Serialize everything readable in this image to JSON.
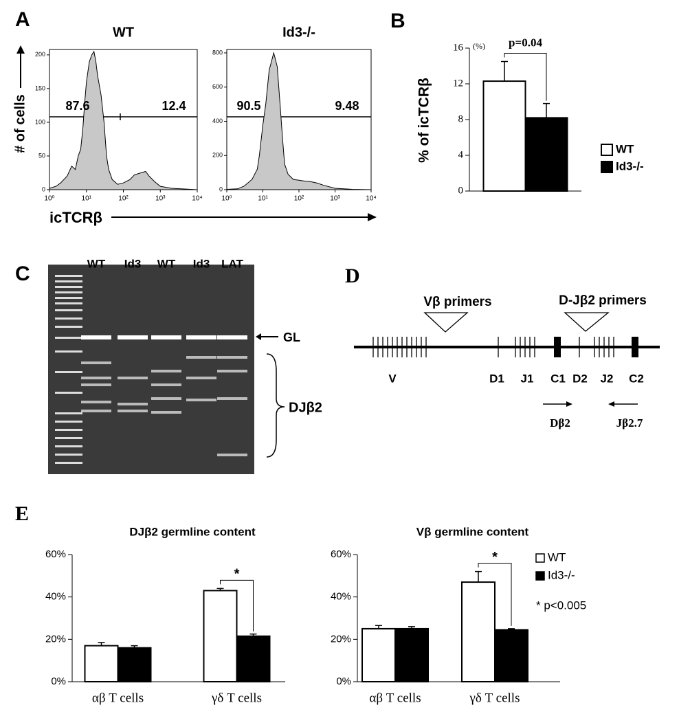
{
  "chart_data": [
    {
      "type": "area",
      "title": "WT",
      "color": "#c8c8c8",
      "xlog": true,
      "x": [
        1,
        1.5,
        2,
        3,
        4,
        5,
        6,
        7,
        8,
        9,
        10,
        12,
        14,
        16,
        18,
        20,
        25,
        30,
        35,
        40,
        50,
        70,
        100,
        150,
        200,
        300,
        400,
        500,
        700,
        1000,
        2000,
        10000
      ],
      "values": [
        2,
        5,
        10,
        20,
        35,
        30,
        50,
        60,
        90,
        130,
        160,
        190,
        200,
        205,
        190,
        170,
        140,
        100,
        50,
        30,
        15,
        8,
        10,
        15,
        22,
        25,
        27,
        20,
        12,
        5,
        2,
        0
      ],
      "xlim": [
        1,
        10000
      ],
      "xticks": [
        {
          "value": 1,
          "label": "10⁰"
        },
        {
          "value": 10,
          "label": "10¹"
        },
        {
          "value": 100,
          "label": "10²"
        },
        {
          "value": 1000,
          "label": "10³"
        },
        {
          "value": 10000,
          "label": "10⁴"
        }
      ],
      "ylim": [
        0,
        208
      ],
      "yticks": [
        0,
        50,
        100,
        150,
        200
      ],
      "annotations": [
        "87.6",
        "12.4"
      ]
    },
    {
      "type": "area",
      "title": "Id3-/-",
      "color": "#c8c8c8",
      "xlog": true,
      "x": [
        1,
        2,
        3,
        5,
        7,
        8,
        10,
        12,
        15,
        20,
        25,
        30,
        35,
        40,
        50,
        70,
        100,
        150,
        200,
        300,
        500,
        1000,
        3000,
        10000
      ],
      "values": [
        2,
        5,
        20,
        60,
        120,
        200,
        380,
        500,
        700,
        800,
        720,
        500,
        300,
        150,
        90,
        60,
        55,
        50,
        48,
        40,
        25,
        8,
        2,
        0
      ],
      "xlim": [
        1,
        10000
      ],
      "xticks": [
        {
          "value": 1,
          "label": "10⁰"
        },
        {
          "value": 10,
          "label": "10¹"
        },
        {
          "value": 100,
          "label": "10²"
        },
        {
          "value": 1000,
          "label": "10³"
        },
        {
          "value": 10000,
          "label": "10⁴"
        }
      ],
      "ylim": [
        0,
        820
      ],
      "yticks": [
        0,
        200,
        400,
        600,
        800
      ],
      "annotations": [
        "90.5",
        "9.48"
      ]
    },
    {
      "type": "bar",
      "ylabel": "% of icTCRβ",
      "unit": "(%)",
      "categories": [
        null
      ],
      "series": [
        {
          "name": "WT",
          "color": "#ffffff",
          "values": [
            12.3
          ],
          "errors": [
            2.2
          ]
        },
        {
          "name": "Id3-/-",
          "color": "#000000",
          "values": [
            8.2
          ],
          "errors": [
            1.6
          ]
        }
      ],
      "ylim": [
        0,
        16
      ],
      "yticks": [
        0,
        4,
        8,
        12,
        16
      ],
      "annotation": "p=0.04",
      "legend": "right"
    },
    {
      "type": "bar",
      "title": "DJβ2 germline content",
      "categories": [
        "αβ T cells",
        "γδ T cells"
      ],
      "series": [
        {
          "color": "#ffffff",
          "values": [
            17,
            43
          ],
          "errors": [
            1.5,
            1
          ]
        },
        {
          "color": "#000000",
          "values": [
            16,
            21.5
          ],
          "errors": [
            1,
            1
          ]
        }
      ],
      "ylim": [
        0,
        60
      ],
      "yticks": [
        {
          "value": 0,
          "label": "0%"
        },
        {
          "value": 20,
          "label": "20%"
        },
        {
          "value": 40,
          "label": "40%"
        },
        {
          "value": 60,
          "label": "60%"
        }
      ],
      "annotation": "*",
      "legend": false
    },
    {
      "type": "bar",
      "title": "Vβ germline content",
      "categories": [
        "αβ T cells",
        "γδ T cells"
      ],
      "series": [
        {
          "name": "WT",
          "color": "#ffffff",
          "values": [
            25,
            47
          ],
          "errors": [
            1.5,
            5
          ]
        },
        {
          "name": "Id3-/-",
          "color": "#000000",
          "values": [
            25,
            24.5
          ],
          "errors": [
            1,
            0.5
          ]
        }
      ],
      "ylim": [
        0,
        60
      ],
      "yticks": [
        {
          "value": 0,
          "label": "0%"
        },
        {
          "value": 20,
          "label": "20%"
        },
        {
          "value": 40,
          "label": "40%"
        },
        {
          "value": 60,
          "label": "60%"
        }
      ],
      "annotation": "*",
      "legend": "right",
      "note": "* p<0.005"
    }
  ],
  "figure": {
    "panels": [
      "A",
      "B",
      "C",
      "D",
      "E"
    ],
    "xlabel": "icTCRβ",
    "ylabel": "# of cells",
    "gel": {
      "lanes": [
        "WT",
        "Id3",
        "WT",
        "Id3",
        "LAT"
      ],
      "labels": [
        "GL",
        "DJβ2"
      ]
    },
    "diagram": {
      "primers": [
        "Vβ primers",
        "D-Jβ2 primers"
      ],
      "segments": [
        "V",
        "D1",
        "J1",
        "C1",
        "D2",
        "J2",
        "C2"
      ],
      "arrows": [
        "Dβ2",
        "Jβ2.7"
      ]
    }
  }
}
